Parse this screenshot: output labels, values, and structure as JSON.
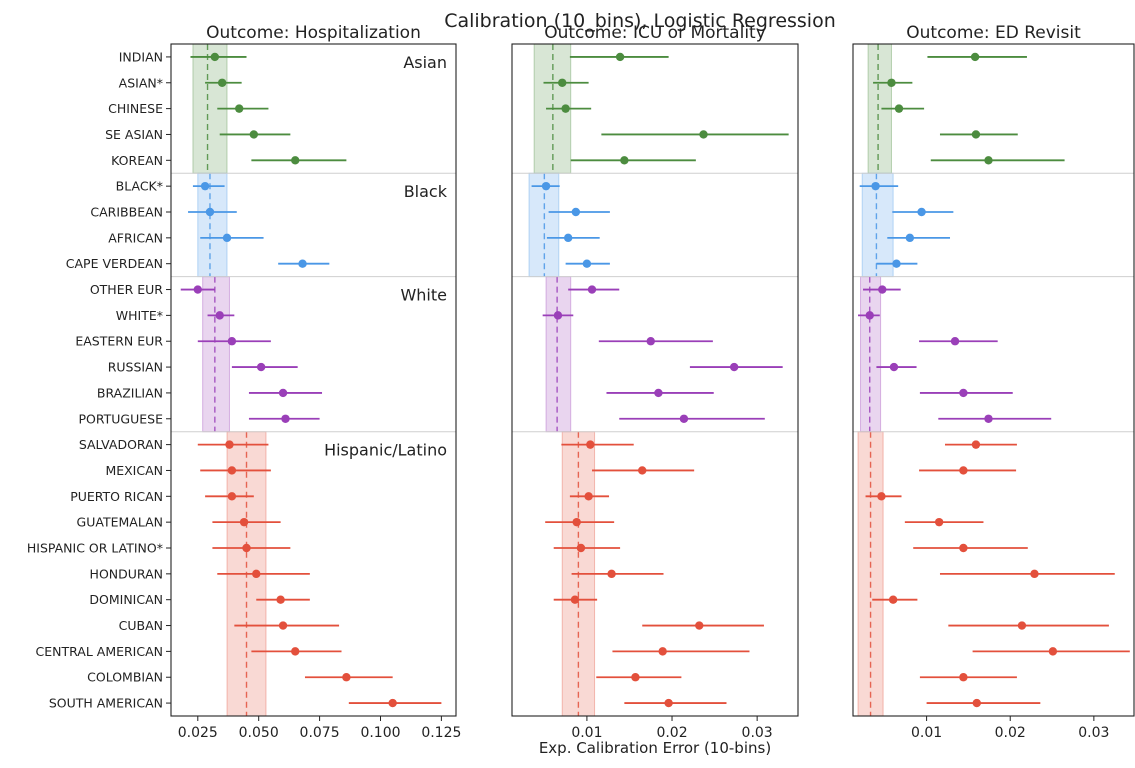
{
  "chart_data": {
    "type": "scatter",
    "subtype": "forest-plot (point estimate with confidence interval)",
    "title": "Calibration (10_bins), Logistic Regression",
    "xlabel": "Exp. Calibration Error (10-bins)",
    "categories": [
      "INDIAN",
      "ASIAN*",
      "CHINESE",
      "SE ASIAN",
      "KOREAN",
      "BLACK*",
      "CARIBBEAN",
      "AFRICAN",
      "CAPE VERDEAN",
      "OTHER EUR",
      "WHITE*",
      "EASTERN EUR",
      "RUSSIAN",
      "BRAZILIAN",
      "PORTUGUESE",
      "SALVADORAN",
      "MEXICAN",
      "PUERTO RICAN",
      "GUATEMALAN",
      "HISPANIC OR LATINO*",
      "HONDURAN",
      "DOMINICAN",
      "CUBAN",
      "CENTRAL AMERICAN",
      "COLOMBIAN",
      "SOUTH AMERICAN"
    ],
    "groups": [
      {
        "name": "Asian",
        "color": "#4c8c3f",
        "start": 0,
        "end": 4
      },
      {
        "name": "Black",
        "color": "#4a97e6",
        "start": 5,
        "end": 8
      },
      {
        "name": "White",
        "color": "#9a3fb8",
        "start": 9,
        "end": 14
      },
      {
        "name": "Hispanic/Latino",
        "color": "#e3503c",
        "start": 15,
        "end": 25
      }
    ],
    "grid": false,
    "panels": [
      {
        "title": "Outcome: Hospitalization",
        "xlim": [
          0.014,
          0.131
        ],
        "xticks": [
          0.025,
          0.05,
          0.075,
          0.1,
          0.125
        ],
        "xtick_labels": [
          "0.025",
          "0.050",
          "0.075",
          "0.100",
          "0.125"
        ],
        "points": [
          [
            0.032,
            0.022,
            0.045
          ],
          [
            0.035,
            0.028,
            0.043
          ],
          [
            0.042,
            0.033,
            0.054
          ],
          [
            0.048,
            0.034,
            0.063
          ],
          [
            0.065,
            0.047,
            0.086
          ],
          [
            0.028,
            0.023,
            0.036
          ],
          [
            0.03,
            0.021,
            0.041
          ],
          [
            0.037,
            0.026,
            0.052
          ],
          [
            0.068,
            0.058,
            0.079
          ],
          [
            0.025,
            0.018,
            0.032
          ],
          [
            0.034,
            0.029,
            0.04
          ],
          [
            0.039,
            0.025,
            0.055
          ],
          [
            0.051,
            0.039,
            0.066
          ],
          [
            0.06,
            0.046,
            0.076
          ],
          [
            0.061,
            0.046,
            0.075
          ],
          [
            0.038,
            0.025,
            0.054
          ],
          [
            0.039,
            0.026,
            0.055
          ],
          [
            0.039,
            0.028,
            0.048
          ],
          [
            0.044,
            0.031,
            0.059
          ],
          [
            0.045,
            0.031,
            0.063
          ],
          [
            0.049,
            0.033,
            0.071
          ],
          [
            0.059,
            0.049,
            0.071
          ],
          [
            0.06,
            0.04,
            0.083
          ],
          [
            0.065,
            0.047,
            0.084
          ],
          [
            0.086,
            0.069,
            0.105
          ],
          [
            0.105,
            0.087,
            0.125
          ]
        ],
        "bands": [
          {
            "group": "Asian",
            "mean": 0.029,
            "lo": 0.023,
            "hi": 0.037
          },
          {
            "group": "Black",
            "mean": 0.03,
            "lo": 0.025,
            "hi": 0.037
          },
          {
            "group": "White",
            "mean": 0.032,
            "lo": 0.027,
            "hi": 0.038
          },
          {
            "group": "Hispanic/Latino",
            "mean": 0.045,
            "lo": 0.037,
            "hi": 0.053
          }
        ]
      },
      {
        "title": "Outcome: ICU or Mortality",
        "xlim": [
          0.0012,
          0.0348
        ],
        "xticks": [
          0.01,
          0.02,
          0.03
        ],
        "xtick_labels": [
          "0.01",
          "0.02",
          "0.03"
        ],
        "points": [
          [
            0.0139,
            0.008,
            0.0196
          ],
          [
            0.0071,
            0.0049,
            0.0102
          ],
          [
            0.0075,
            0.0052,
            0.0105
          ],
          [
            0.0237,
            0.0117,
            0.0337
          ],
          [
            0.0144,
            0.0081,
            0.0228
          ],
          [
            0.0052,
            0.0035,
            0.0068
          ],
          [
            0.0087,
            0.0055,
            0.0127
          ],
          [
            0.0078,
            0.0053,
            0.0115
          ],
          [
            0.01,
            0.0075,
            0.0127
          ],
          [
            0.0106,
            0.0078,
            0.0138
          ],
          [
            0.0066,
            0.0048,
            0.0084
          ],
          [
            0.0175,
            0.0114,
            0.0248
          ],
          [
            0.0273,
            0.0221,
            0.033
          ],
          [
            0.0184,
            0.0123,
            0.0249
          ],
          [
            0.0214,
            0.0138,
            0.0309
          ],
          [
            0.0104,
            0.007,
            0.0155
          ],
          [
            0.0165,
            0.0106,
            0.0226
          ],
          [
            0.0102,
            0.008,
            0.0126
          ],
          [
            0.0088,
            0.0051,
            0.0132
          ],
          [
            0.0093,
            0.0061,
            0.0139
          ],
          [
            0.0129,
            0.0082,
            0.019
          ],
          [
            0.0086,
            0.0061,
            0.0112
          ],
          [
            0.0232,
            0.0165,
            0.0308
          ],
          [
            0.0189,
            0.013,
            0.0291
          ],
          [
            0.0157,
            0.0111,
            0.0211
          ],
          [
            0.0196,
            0.0144,
            0.0264
          ]
        ],
        "bands": [
          {
            "group": "Asian",
            "mean": 0.006,
            "lo": 0.0038,
            "hi": 0.0081
          },
          {
            "group": "Black",
            "mean": 0.005,
            "lo": 0.0032,
            "hi": 0.0067
          },
          {
            "group": "White",
            "mean": 0.0065,
            "lo": 0.0052,
            "hi": 0.0081
          },
          {
            "group": "Hispanic/Latino",
            "mean": 0.009,
            "lo": 0.0071,
            "hi": 0.0109
          }
        ]
      },
      {
        "title": "Outcome: ED Revisit",
        "xlim": [
          0.0012,
          0.0348
        ],
        "xticks": [
          0.01,
          0.02,
          0.03
        ],
        "xtick_labels": [
          "0.01",
          "0.02",
          "0.03"
        ],
        "points": [
          [
            0.0158,
            0.0101,
            0.022
          ],
          [
            0.0058,
            0.0036,
            0.0083
          ],
          [
            0.0067,
            0.0046,
            0.0097
          ],
          [
            0.0159,
            0.0116,
            0.0209
          ],
          [
            0.0174,
            0.0105,
            0.0265
          ],
          [
            0.0039,
            0.002,
            0.0066
          ],
          [
            0.0094,
            0.0059,
            0.0132
          ],
          [
            0.008,
            0.0053,
            0.0128
          ],
          [
            0.0064,
            0.004,
            0.0089
          ],
          [
            0.0047,
            0.0024,
            0.0069
          ],
          [
            0.0032,
            0.0018,
            0.0044
          ],
          [
            0.0134,
            0.0091,
            0.0185
          ],
          [
            0.0061,
            0.004,
            0.0088
          ],
          [
            0.0144,
            0.0092,
            0.0203
          ],
          [
            0.0174,
            0.0114,
            0.0249
          ],
          [
            0.0159,
            0.0122,
            0.0208
          ],
          [
            0.0144,
            0.0091,
            0.0207
          ],
          [
            0.0046,
            0.0027,
            0.007
          ],
          [
            0.0115,
            0.0074,
            0.0168
          ],
          [
            0.0144,
            0.0084,
            0.0221
          ],
          [
            0.0229,
            0.0116,
            0.0325
          ],
          [
            0.006,
            0.0035,
            0.0089
          ],
          [
            0.0214,
            0.0126,
            0.0318
          ],
          [
            0.0251,
            0.0155,
            0.0343
          ],
          [
            0.0144,
            0.0092,
            0.0208
          ],
          [
            0.016,
            0.01,
            0.0236
          ]
        ],
        "bands": [
          {
            "group": "Asian",
            "mean": 0.0042,
            "lo": 0.003,
            "hi": 0.0058
          },
          {
            "group": "Black",
            "mean": 0.004,
            "lo": 0.0023,
            "hi": 0.006
          },
          {
            "group": "White",
            "mean": 0.0032,
            "lo": 0.0021,
            "hi": 0.0045
          },
          {
            "group": "Hispanic/Latino",
            "mean": 0.0033,
            "lo": 0.0018,
            "hi": 0.0048
          }
        ]
      }
    ]
  }
}
